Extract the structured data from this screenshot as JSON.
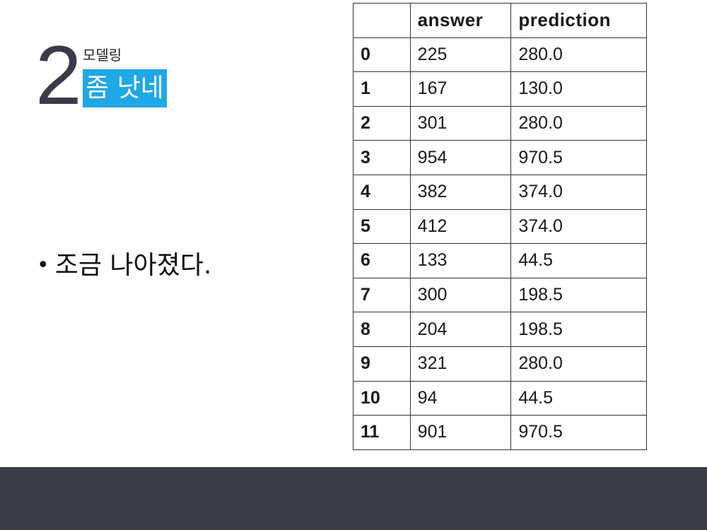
{
  "section": {
    "number": "2",
    "label": "모델링",
    "title": "좀 낫네"
  },
  "bullets": [
    "조금 나아졌다."
  ],
  "table": {
    "columns": [
      "",
      "answer",
      "prediction"
    ],
    "rows": [
      {
        "index": "0",
        "answer": "225",
        "prediction": "280.0"
      },
      {
        "index": "1",
        "answer": "167",
        "prediction": "130.0"
      },
      {
        "index": "2",
        "answer": "301",
        "prediction": "280.0"
      },
      {
        "index": "3",
        "answer": "954",
        "prediction": "970.5"
      },
      {
        "index": "4",
        "answer": "382",
        "prediction": "374.0"
      },
      {
        "index": "5",
        "answer": "412",
        "prediction": "374.0"
      },
      {
        "index": "6",
        "answer": "133",
        "prediction": "44.5"
      },
      {
        "index": "7",
        "answer": "300",
        "prediction": "198.5"
      },
      {
        "index": "8",
        "answer": "204",
        "prediction": "198.5"
      },
      {
        "index": "9",
        "answer": "321",
        "prediction": "280.0"
      },
      {
        "index": "10",
        "answer": "94",
        "prediction": "44.5"
      },
      {
        "index": "11",
        "answer": "901",
        "prediction": "970.5"
      }
    ]
  },
  "colors": {
    "accent": "#1ea8e6",
    "footer": "#383b48",
    "number": "#3a3a48"
  }
}
